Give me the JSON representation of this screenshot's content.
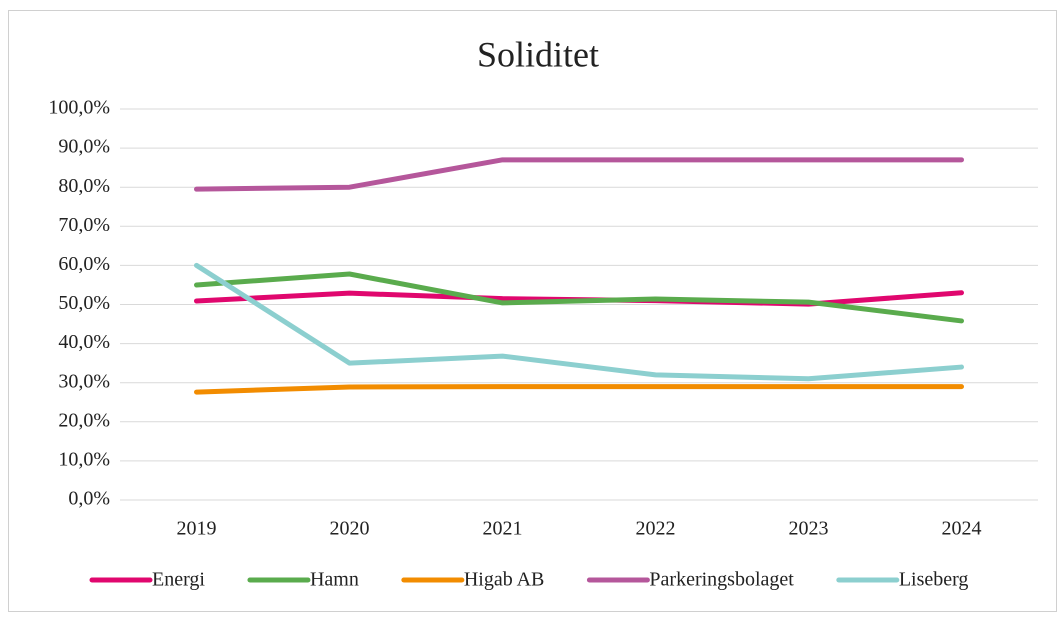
{
  "chart_data": {
    "type": "line",
    "title": "Soliditet",
    "categories": [
      "2019",
      "2020",
      "2021",
      "2022",
      "2023",
      "2024"
    ],
    "series": [
      {
        "name": "Energi",
        "color": "#e0076e",
        "values": [
          50.9,
          52.9,
          51.5,
          51.0,
          50.1,
          53.0
        ]
      },
      {
        "name": "Hamn",
        "color": "#5aab4d",
        "values": [
          55.0,
          57.8,
          50.4,
          51.4,
          50.6,
          45.8
        ]
      },
      {
        "name": "Higab AB",
        "color": "#f28c00",
        "values": [
          27.6,
          28.9,
          29.0,
          29.0,
          29.0,
          29.0
        ]
      },
      {
        "name": "Parkeringsbolaget",
        "color": "#b5579b",
        "values": [
          79.5,
          80.0,
          87.0,
          87.0,
          87.0,
          87.0
        ]
      },
      {
        "name": "Liseberg",
        "color": "#8ccfcf",
        "values": [
          60.0,
          35.0,
          36.8,
          32.0,
          31.0,
          34.0
        ]
      }
    ],
    "ylim": [
      0,
      100
    ],
    "yticks": [
      {
        "value": 0,
        "label": "0,0%"
      },
      {
        "value": 10,
        "label": "10,0%"
      },
      {
        "value": 20,
        "label": "20,0%"
      },
      {
        "value": 30,
        "label": "30,0%"
      },
      {
        "value": 40,
        "label": "40,0%"
      },
      {
        "value": 50,
        "label": "50,0%"
      },
      {
        "value": 60,
        "label": "60,0%"
      },
      {
        "value": 70,
        "label": "70,0%"
      },
      {
        "value": 80,
        "label": "80,0%"
      },
      {
        "value": 90,
        "label": "90,0%"
      },
      {
        "value": 100,
        "label": "100,0%"
      }
    ],
    "grid": true,
    "legend": "bottom"
  }
}
